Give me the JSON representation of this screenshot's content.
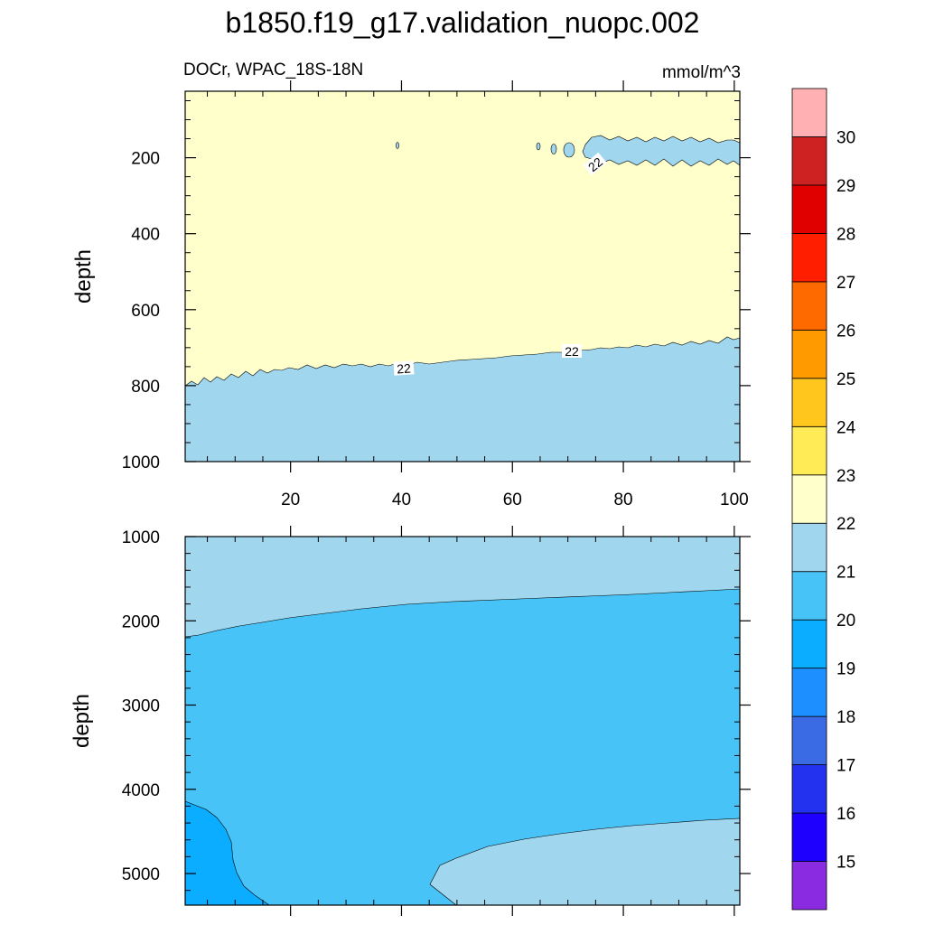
{
  "chart_data": {
    "type": "contour",
    "title": "b1850.f19_g17.validation_nuopc.002",
    "subtitle_left": "DOCr, WPAC_18S-18N",
    "subtitle_right": "mmol/m^3",
    "panels": [
      {
        "name": "upper",
        "xlim": [
          1,
          101
        ],
        "ylim": [
          1000,
          25
        ],
        "ylabel": "depth",
        "x_ticks": [
          20,
          40,
          60,
          80,
          100
        ],
        "y_ticks": [
          200,
          400,
          600,
          800,
          1000
        ],
        "contour_labels": [
          "22",
          "22",
          "22"
        ]
      },
      {
        "name": "lower",
        "xlim": [
          1,
          101
        ],
        "ylim": [
          5375,
          1000
        ],
        "ylabel": "depth",
        "x_ticks": [
          20,
          40,
          60,
          80,
          100
        ],
        "y_ticks": [
          1000,
          2000,
          3000,
          4000,
          5000
        ]
      }
    ],
    "colorbar": {
      "labels": [
        "15",
        "16",
        "17",
        "18",
        "19",
        "20",
        "21",
        "22",
        "23",
        "24",
        "25",
        "26",
        "27",
        "28",
        "29",
        "30"
      ],
      "colors": [
        "#8A2BE2",
        "#1E00FF",
        "#2332EF",
        "#3A6BE5",
        "#1E8FFF",
        "#0AADFF",
        "#48C3F7",
        "#A0D7EF",
        "#FFFFCC",
        "#FFEB55",
        "#FFC61E",
        "#FF9A00",
        "#FF6A00",
        "#FF1E00",
        "#E00000",
        "#CE2222",
        "#FFB0B2"
      ]
    }
  }
}
